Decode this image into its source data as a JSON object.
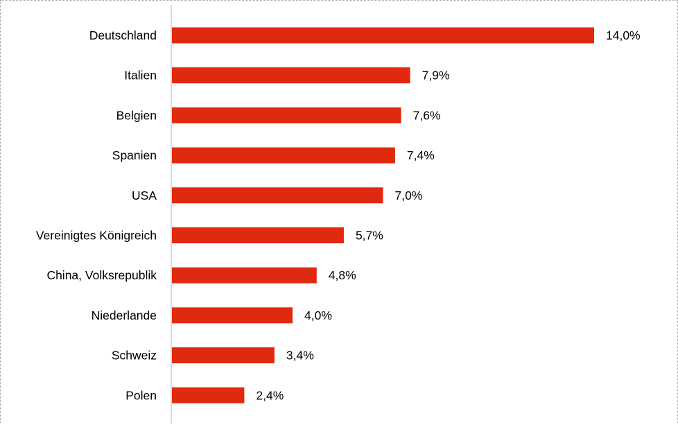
{
  "chart_data": {
    "type": "bar",
    "orientation": "horizontal",
    "categories": [
      "Deutschland",
      "Italien",
      "Belgien",
      "Spanien",
      "USA",
      "Vereinigtes Königreich",
      "China, Volksrepublik",
      "Niederlande",
      "Schweiz",
      "Polen"
    ],
    "values": [
      14.0,
      7.9,
      7.6,
      7.4,
      7.0,
      5.7,
      4.8,
      4.0,
      3.4,
      2.4
    ],
    "value_labels": [
      "14,0%",
      "7,9%",
      "7,6%",
      "7,4%",
      "7,0%",
      "5,7%",
      "4,8%",
      "4,0%",
      "3,4%",
      "2,4%"
    ],
    "unit": "%",
    "title": "",
    "xlabel": "",
    "ylabel": "",
    "xlim": [
      0,
      14.0
    ],
    "grid": false,
    "legend": "none",
    "bar_color": "#e1290f",
    "axis_color": "#c8c8c8"
  }
}
